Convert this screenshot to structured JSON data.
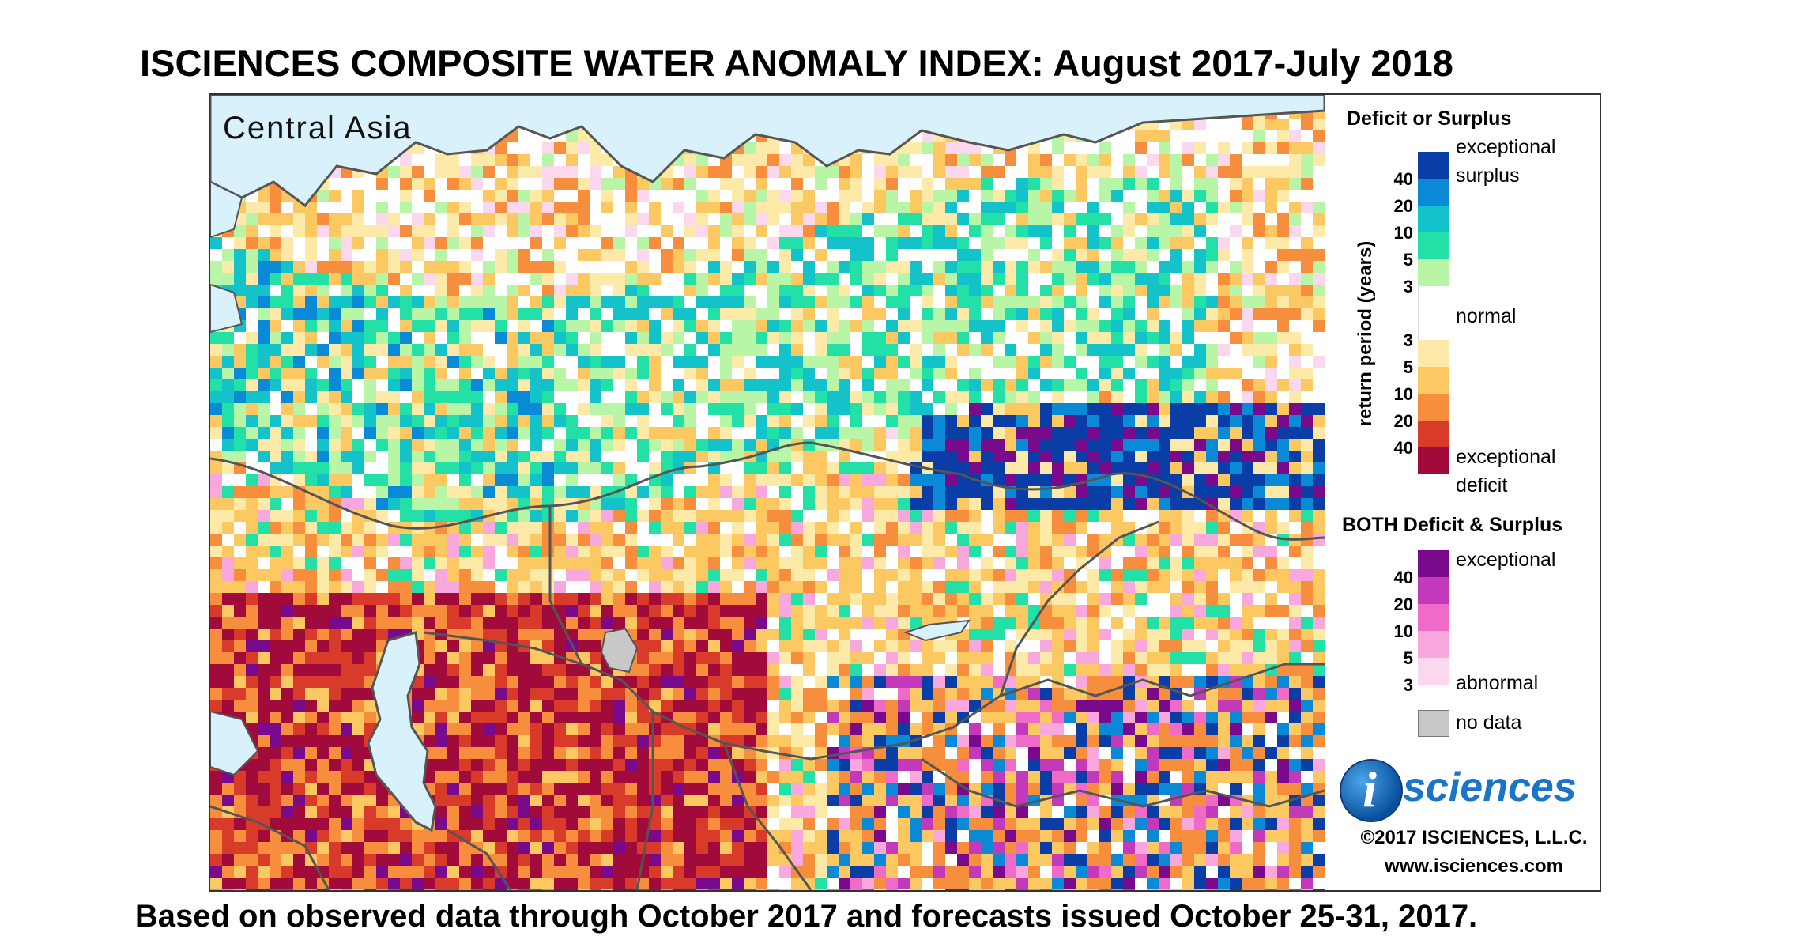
{
  "title": "ISCIENCES COMPOSITE WATER ANOMALY INDEX: August 2017-July 2018",
  "region_label": "Central Asia",
  "footer": "Based on observed data through October 2017 and forecasts issued October 25-31, 2017.",
  "legend": {
    "deficit_surplus_heading": "Deficit or Surplus",
    "axis_label": "return period (years)",
    "exceptional_surplus_line1": "exceptional",
    "exceptional_surplus_line2": "surplus",
    "normal": "normal",
    "exceptional_deficit_line1": "exceptional",
    "exceptional_deficit_line2": "deficit",
    "surplus_ticks": [
      "40",
      "20",
      "10",
      "5",
      "3"
    ],
    "deficit_ticks": [
      "3",
      "5",
      "10",
      "20",
      "40"
    ],
    "surplus_colors": [
      "#0a3ea6",
      "#0a8ad6",
      "#13c3c9",
      "#22e0a6",
      "#b9f5a6"
    ],
    "normal_color": "#ffffff",
    "deficit_colors": [
      "#fde9a8",
      "#fbc862",
      "#f68e3e",
      "#d93b2a",
      "#a10b3c"
    ],
    "both_heading": "BOTH Deficit & Surplus",
    "both_top": "exceptional",
    "both_bottom": "abnormal",
    "both_ticks": [
      "40",
      "20",
      "10",
      "5",
      "3"
    ],
    "both_colors": [
      "#7a0a8c",
      "#c23aba",
      "#f06ac8",
      "#f8a8dc",
      "#fcd8ee"
    ],
    "no_data_label": "no data",
    "no_data_color": "#c8c8c8"
  },
  "logo": {
    "letter": "i",
    "text": "sciences"
  },
  "copyright": "©2017 ISCIENCES, L.L.C.",
  "website": "www.isciences.com"
}
